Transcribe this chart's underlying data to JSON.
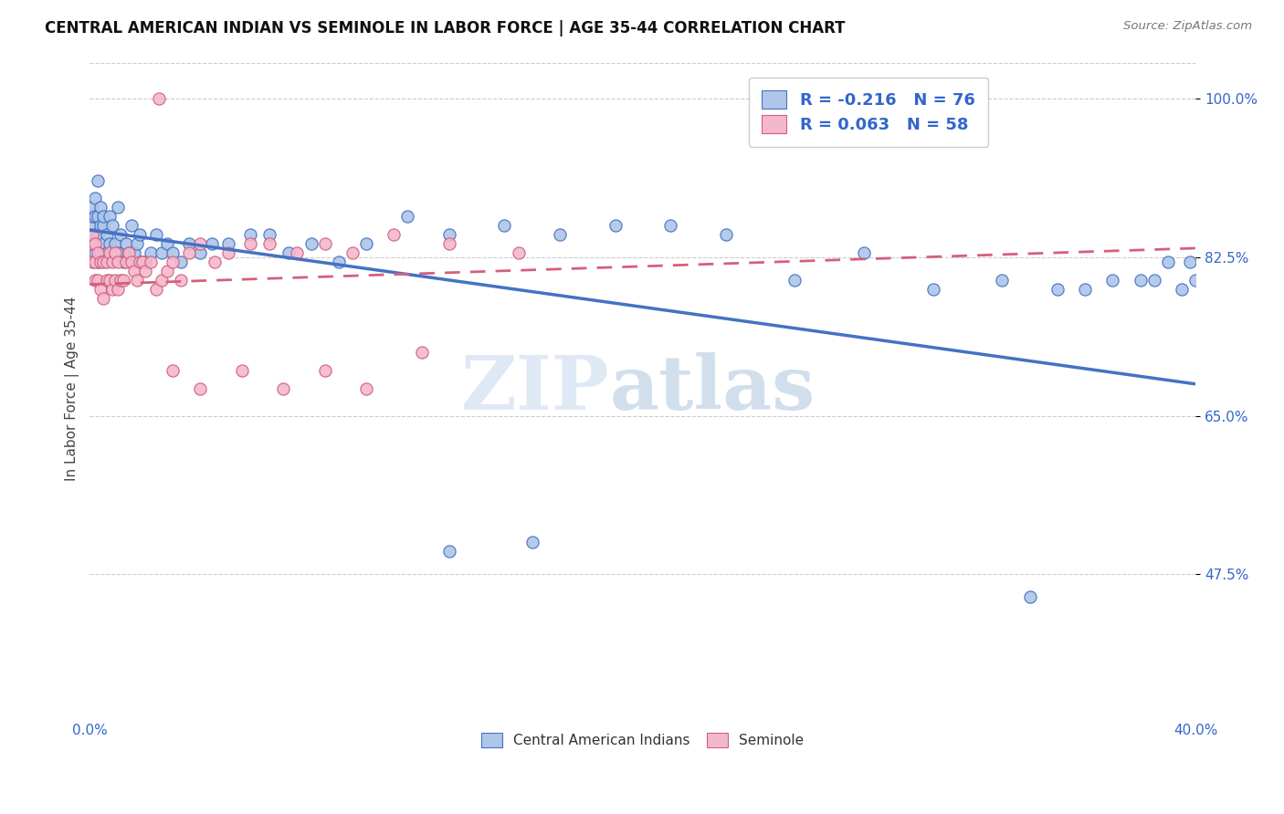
{
  "title": "CENTRAL AMERICAN INDIAN VS SEMINOLE IN LABOR FORCE | AGE 35-44 CORRELATION CHART",
  "source": "Source: ZipAtlas.com",
  "ylabel": "In Labor Force | Age 35-44",
  "xlim": [
    0.0,
    0.4
  ],
  "ylim": [
    0.32,
    1.04
  ],
  "yticks": [
    0.475,
    0.65,
    0.825,
    1.0
  ],
  "ytick_labels": [
    "47.5%",
    "65.0%",
    "82.5%",
    "100.0%"
  ],
  "xticks": [
    0.0,
    0.08,
    0.16,
    0.24,
    0.32,
    0.4
  ],
  "xtick_labels": [
    "0.0%",
    "",
    "",
    "",
    "",
    "40.0%"
  ],
  "blue_fill": "#aec6e8",
  "blue_edge": "#4472c4",
  "pink_fill": "#f4b8cc",
  "pink_edge": "#d06080",
  "blue_line_color": "#4472c4",
  "pink_line_color": "#d4607a",
  "legend_R_blue": "-0.216",
  "legend_N_blue": "76",
  "legend_R_pink": "0.063",
  "legend_N_pink": "58",
  "watermark": "ZIPatlas",
  "blue_scatter_x": [
    0.001,
    0.001,
    0.001,
    0.001,
    0.002,
    0.002,
    0.002,
    0.002,
    0.003,
    0.003,
    0.003,
    0.003,
    0.004,
    0.004,
    0.004,
    0.005,
    0.005,
    0.005,
    0.006,
    0.006,
    0.007,
    0.007,
    0.008,
    0.008,
    0.009,
    0.01,
    0.01,
    0.011,
    0.012,
    0.013,
    0.014,
    0.015,
    0.016,
    0.017,
    0.018,
    0.019,
    0.02,
    0.022,
    0.024,
    0.026,
    0.028,
    0.03,
    0.033,
    0.036,
    0.04,
    0.044,
    0.05,
    0.058,
    0.065,
    0.072,
    0.08,
    0.09,
    0.1,
    0.115,
    0.13,
    0.15,
    0.17,
    0.19,
    0.21,
    0.23,
    0.255,
    0.28,
    0.305,
    0.33,
    0.35,
    0.36,
    0.37,
    0.38,
    0.385,
    0.39,
    0.395,
    0.398,
    0.4,
    0.13,
    0.16,
    0.34
  ],
  "blue_scatter_y": [
    0.84,
    0.86,
    0.87,
    0.88,
    0.83,
    0.85,
    0.87,
    0.89,
    0.82,
    0.85,
    0.87,
    0.91,
    0.83,
    0.86,
    0.88,
    0.84,
    0.86,
    0.87,
    0.83,
    0.85,
    0.84,
    0.87,
    0.83,
    0.86,
    0.84,
    0.83,
    0.88,
    0.85,
    0.82,
    0.84,
    0.83,
    0.86,
    0.83,
    0.84,
    0.85,
    0.82,
    0.82,
    0.83,
    0.85,
    0.83,
    0.84,
    0.83,
    0.82,
    0.84,
    0.83,
    0.84,
    0.84,
    0.85,
    0.85,
    0.83,
    0.84,
    0.82,
    0.84,
    0.87,
    0.85,
    0.86,
    0.85,
    0.86,
    0.86,
    0.85,
    0.8,
    0.83,
    0.79,
    0.8,
    0.79,
    0.79,
    0.8,
    0.8,
    0.8,
    0.82,
    0.79,
    0.82,
    0.8,
    0.5,
    0.51,
    0.45
  ],
  "pink_scatter_x": [
    0.001,
    0.001,
    0.001,
    0.002,
    0.002,
    0.002,
    0.003,
    0.003,
    0.004,
    0.004,
    0.005,
    0.005,
    0.006,
    0.006,
    0.007,
    0.007,
    0.008,
    0.008,
    0.009,
    0.009,
    0.01,
    0.01,
    0.011,
    0.012,
    0.013,
    0.014,
    0.015,
    0.016,
    0.017,
    0.018,
    0.019,
    0.02,
    0.022,
    0.024,
    0.026,
    0.028,
    0.03,
    0.033,
    0.036,
    0.04,
    0.045,
    0.05,
    0.058,
    0.065,
    0.075,
    0.085,
    0.095,
    0.11,
    0.13,
    0.155,
    0.03,
    0.04,
    0.055,
    0.07,
    0.085,
    0.1,
    0.12,
    0.025
  ],
  "pink_scatter_y": [
    0.82,
    0.84,
    0.85,
    0.8,
    0.82,
    0.84,
    0.8,
    0.83,
    0.79,
    0.82,
    0.78,
    0.82,
    0.8,
    0.82,
    0.8,
    0.83,
    0.79,
    0.82,
    0.8,
    0.83,
    0.79,
    0.82,
    0.8,
    0.8,
    0.82,
    0.83,
    0.82,
    0.81,
    0.8,
    0.82,
    0.82,
    0.81,
    0.82,
    0.79,
    0.8,
    0.81,
    0.82,
    0.8,
    0.83,
    0.84,
    0.82,
    0.83,
    0.84,
    0.84,
    0.83,
    0.84,
    0.83,
    0.85,
    0.84,
    0.83,
    0.7,
    0.68,
    0.7,
    0.68,
    0.7,
    0.68,
    0.72,
    1.0
  ],
  "blue_trend_x0": 0.0,
  "blue_trend_y0": 0.855,
  "blue_trend_x1": 0.4,
  "blue_trend_y1": 0.685,
  "pink_trend_x0": 0.0,
  "pink_trend_y0": 0.795,
  "pink_trend_x1": 0.4,
  "pink_trend_y1": 0.835
}
